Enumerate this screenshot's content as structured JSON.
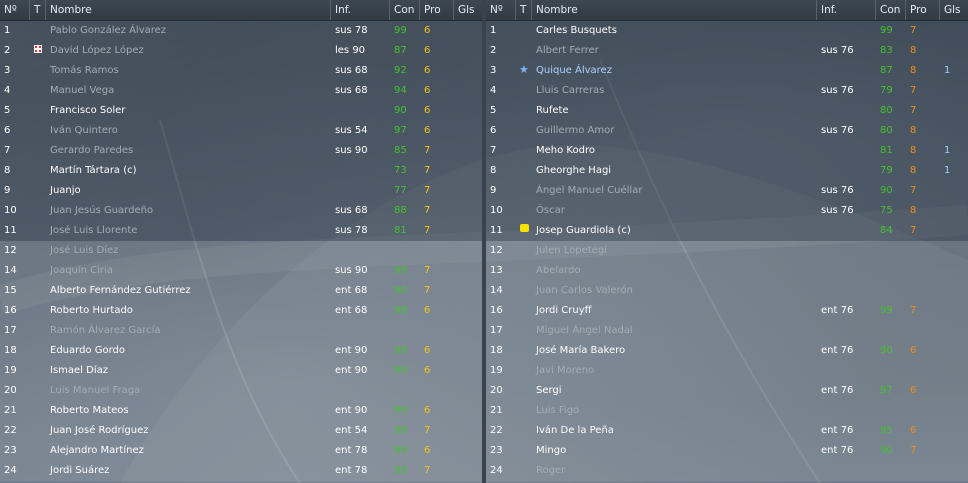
{
  "header": {
    "num": "Nº",
    "t": "T",
    "name": "Nombre",
    "inf": "Inf.",
    "con": "Con",
    "pro": "Pro",
    "gls": "Gls"
  },
  "colors": {
    "con_green": "#45c12c",
    "pro_yellow": "#f6c21c",
    "pro_orange": "#f68c14",
    "dim_text": "#a4acb4",
    "highlight_blue": "#aed2ff"
  },
  "left": [
    {
      "num": "1",
      "name": "Pablo González Álvarez",
      "dim": true,
      "inf": "sus 78",
      "con": "99",
      "pro": "6",
      "pro_color": "y"
    },
    {
      "num": "2",
      "name": "David López López",
      "dim": true,
      "icon": "injury-icon",
      "inf": "les 90",
      "con": "87",
      "pro": "6",
      "pro_color": "y"
    },
    {
      "num": "3",
      "name": "Tomás Ramos",
      "dim": true,
      "inf": "sus 68",
      "con": "92",
      "pro": "6",
      "pro_color": "y"
    },
    {
      "num": "4",
      "name": "Manuel Vega",
      "dim": true,
      "inf": "sus 68",
      "con": "94",
      "pro": "6",
      "pro_color": "y"
    },
    {
      "num": "5",
      "name": "Francisco Soler",
      "con": "90",
      "pro": "6",
      "pro_color": "y"
    },
    {
      "num": "6",
      "name": "Iván Quintero",
      "dim": true,
      "inf": "sus 54",
      "con": "97",
      "pro": "6",
      "pro_color": "y"
    },
    {
      "num": "7",
      "name": "Gerardo Paredes",
      "dim": true,
      "inf": "sus 90",
      "con": "85",
      "pro": "7",
      "pro_color": "y"
    },
    {
      "num": "8",
      "name": "Martín Tártara (c)",
      "con": "73",
      "pro": "7",
      "pro_color": "y"
    },
    {
      "num": "9",
      "name": "Juanjo",
      "con": "77",
      "pro": "7",
      "pro_color": "y"
    },
    {
      "num": "10",
      "name": "Juan Jesús Guardeño",
      "dim": true,
      "inf": "sus 68",
      "con": "88",
      "pro": "7",
      "pro_color": "y"
    },
    {
      "num": "11",
      "name": "José Luis Llorente",
      "dim": true,
      "inf": "sus 78",
      "con": "81",
      "pro": "7",
      "pro_color": "y"
    },
    {
      "num": "12",
      "name": "José Luis Díez",
      "dim": true
    },
    {
      "num": "14",
      "name": "Joaquín Ciria",
      "dim": true,
      "inf": "sus 90",
      "con": "99",
      "pro": "7",
      "pro_color": "y"
    },
    {
      "num": "15",
      "name": "Alberto Fernández Gutiérrez",
      "inf": "ent 68",
      "con": "90",
      "pro": "7",
      "pro_color": "y"
    },
    {
      "num": "16",
      "name": "Roberto Hurtado",
      "inf": "ent 68",
      "con": "99",
      "pro": "6",
      "pro_color": "y"
    },
    {
      "num": "17",
      "name": "Ramón Álvarez García",
      "dim": true
    },
    {
      "num": "18",
      "name": "Eduardo Gordo",
      "inf": "ent 90",
      "con": "99",
      "pro": "6",
      "pro_color": "y"
    },
    {
      "num": "19",
      "name": "Ismael Díaz",
      "inf": "ent 90",
      "con": "99",
      "pro": "6",
      "pro_color": "y"
    },
    {
      "num": "20",
      "name": "Luis Manuel Fraga",
      "dim": true
    },
    {
      "num": "21",
      "name": "Roberto Mateos",
      "inf": "ent 90",
      "con": "99",
      "pro": "6",
      "pro_color": "y"
    },
    {
      "num": "22",
      "name": "Juan José Rodríguez",
      "inf": "ent 54",
      "con": "99",
      "pro": "7",
      "pro_color": "y"
    },
    {
      "num": "23",
      "name": "Alejandro Martínez",
      "inf": "ent 78",
      "con": "99",
      "pro": "6",
      "pro_color": "y"
    },
    {
      "num": "24",
      "name": "Jordi Suárez",
      "inf": "ent 78",
      "con": "99",
      "pro": "7",
      "pro_color": "y"
    }
  ],
  "right": [
    {
      "num": "1",
      "name": "Carles Busquets",
      "con": "99",
      "pro": "7",
      "pro_color": "o"
    },
    {
      "num": "2",
      "name": "Albert Ferrer",
      "dim": true,
      "inf": "sus 76",
      "con": "83",
      "pro": "8",
      "pro_color": "o"
    },
    {
      "num": "3",
      "name": "Quique Álvarez",
      "star": true,
      "icon": "star-icon",
      "con": "87",
      "pro": "8",
      "pro_color": "o",
      "gls": "1"
    },
    {
      "num": "4",
      "name": "Lluis Carreras",
      "dim": true,
      "inf": "sus 76",
      "con": "79",
      "pro": "7",
      "pro_color": "o"
    },
    {
      "num": "5",
      "name": "Rufete",
      "con": "80",
      "pro": "7",
      "pro_color": "o"
    },
    {
      "num": "6",
      "name": "Guillermo Amor",
      "dim": true,
      "inf": "sus 76",
      "con": "80",
      "pro": "8",
      "pro_color": "o"
    },
    {
      "num": "7",
      "name": "Meho Kodro",
      "con": "81",
      "pro": "8",
      "pro_color": "o",
      "gls": "1"
    },
    {
      "num": "8",
      "name": "Gheorghe Hagi",
      "con": "79",
      "pro": "8",
      "pro_color": "o",
      "gls": "1"
    },
    {
      "num": "9",
      "name": "Ángel Manuel Cuéllar",
      "dim": true,
      "inf": "sus 76",
      "con": "90",
      "pro": "7",
      "pro_color": "o"
    },
    {
      "num": "10",
      "name": "Óscar",
      "dim": true,
      "inf": "sus 76",
      "con": "75",
      "pro": "8",
      "pro_color": "o"
    },
    {
      "num": "11",
      "name": "Josep Guardiola (c)",
      "icon": "yellow-card-icon",
      "con": "84",
      "pro": "7",
      "pro_color": "o"
    },
    {
      "num": "12",
      "name": "Julen Lopetegi",
      "dim": true
    },
    {
      "num": "13",
      "name": "Abelardo",
      "dim": true
    },
    {
      "num": "14",
      "name": "Juan Carlos Valerón",
      "dim": true
    },
    {
      "num": "16",
      "name": "Jordi Cruyff",
      "inf": "ent 76",
      "con": "99",
      "pro": "7",
      "pro_color": "o"
    },
    {
      "num": "17",
      "name": "Miguel Ángel Nadal",
      "dim": true
    },
    {
      "num": "18",
      "name": "José María Bakero",
      "inf": "ent 76",
      "con": "90",
      "pro": "6",
      "pro_color": "o"
    },
    {
      "num": "19",
      "name": "Javi Moreno",
      "dim": true
    },
    {
      "num": "20",
      "name": "Sergi",
      "inf": "ent 76",
      "con": "97",
      "pro": "6",
      "pro_color": "o"
    },
    {
      "num": "21",
      "name": "Luis Figo",
      "dim": true
    },
    {
      "num": "22",
      "name": "Iván De la Peña",
      "inf": "ent 76",
      "con": "95",
      "pro": "6",
      "pro_color": "o"
    },
    {
      "num": "23",
      "name": "Mingo",
      "inf": "ent 76",
      "con": "90",
      "pro": "7",
      "pro_color": "o"
    },
    {
      "num": "24",
      "name": "Roger",
      "dim": true
    }
  ]
}
